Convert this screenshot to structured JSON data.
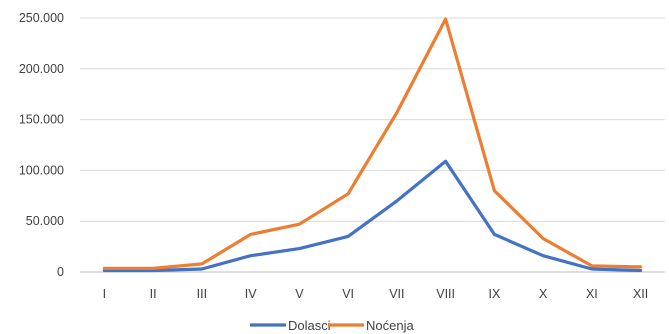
{
  "chart_data": {
    "type": "line",
    "categories": [
      "I",
      "II",
      "III",
      "IV",
      "V",
      "VI",
      "VII",
      "VIII",
      "IX",
      "X",
      "XI",
      "XII"
    ],
    "y_ticks": [
      "0",
      "50.000",
      "100.000",
      "150.000",
      "200.000",
      "250.000"
    ],
    "ylim": [
      0,
      250000
    ],
    "grid": true,
    "legend_position": "bottom",
    "series": [
      {
        "name": "Dolasci",
        "color": "#4472c4",
        "values": [
          1500,
          1500,
          3000,
          16000,
          23000,
          35000,
          70000,
          109000,
          37000,
          16000,
          3000,
          1500
        ]
      },
      {
        "name": "Noćenja",
        "color": "#ed7d31",
        "values": [
          3500,
          3500,
          8000,
          37000,
          47000,
          77000,
          157000,
          249000,
          80000,
          33000,
          6000,
          5000
        ]
      }
    ]
  }
}
